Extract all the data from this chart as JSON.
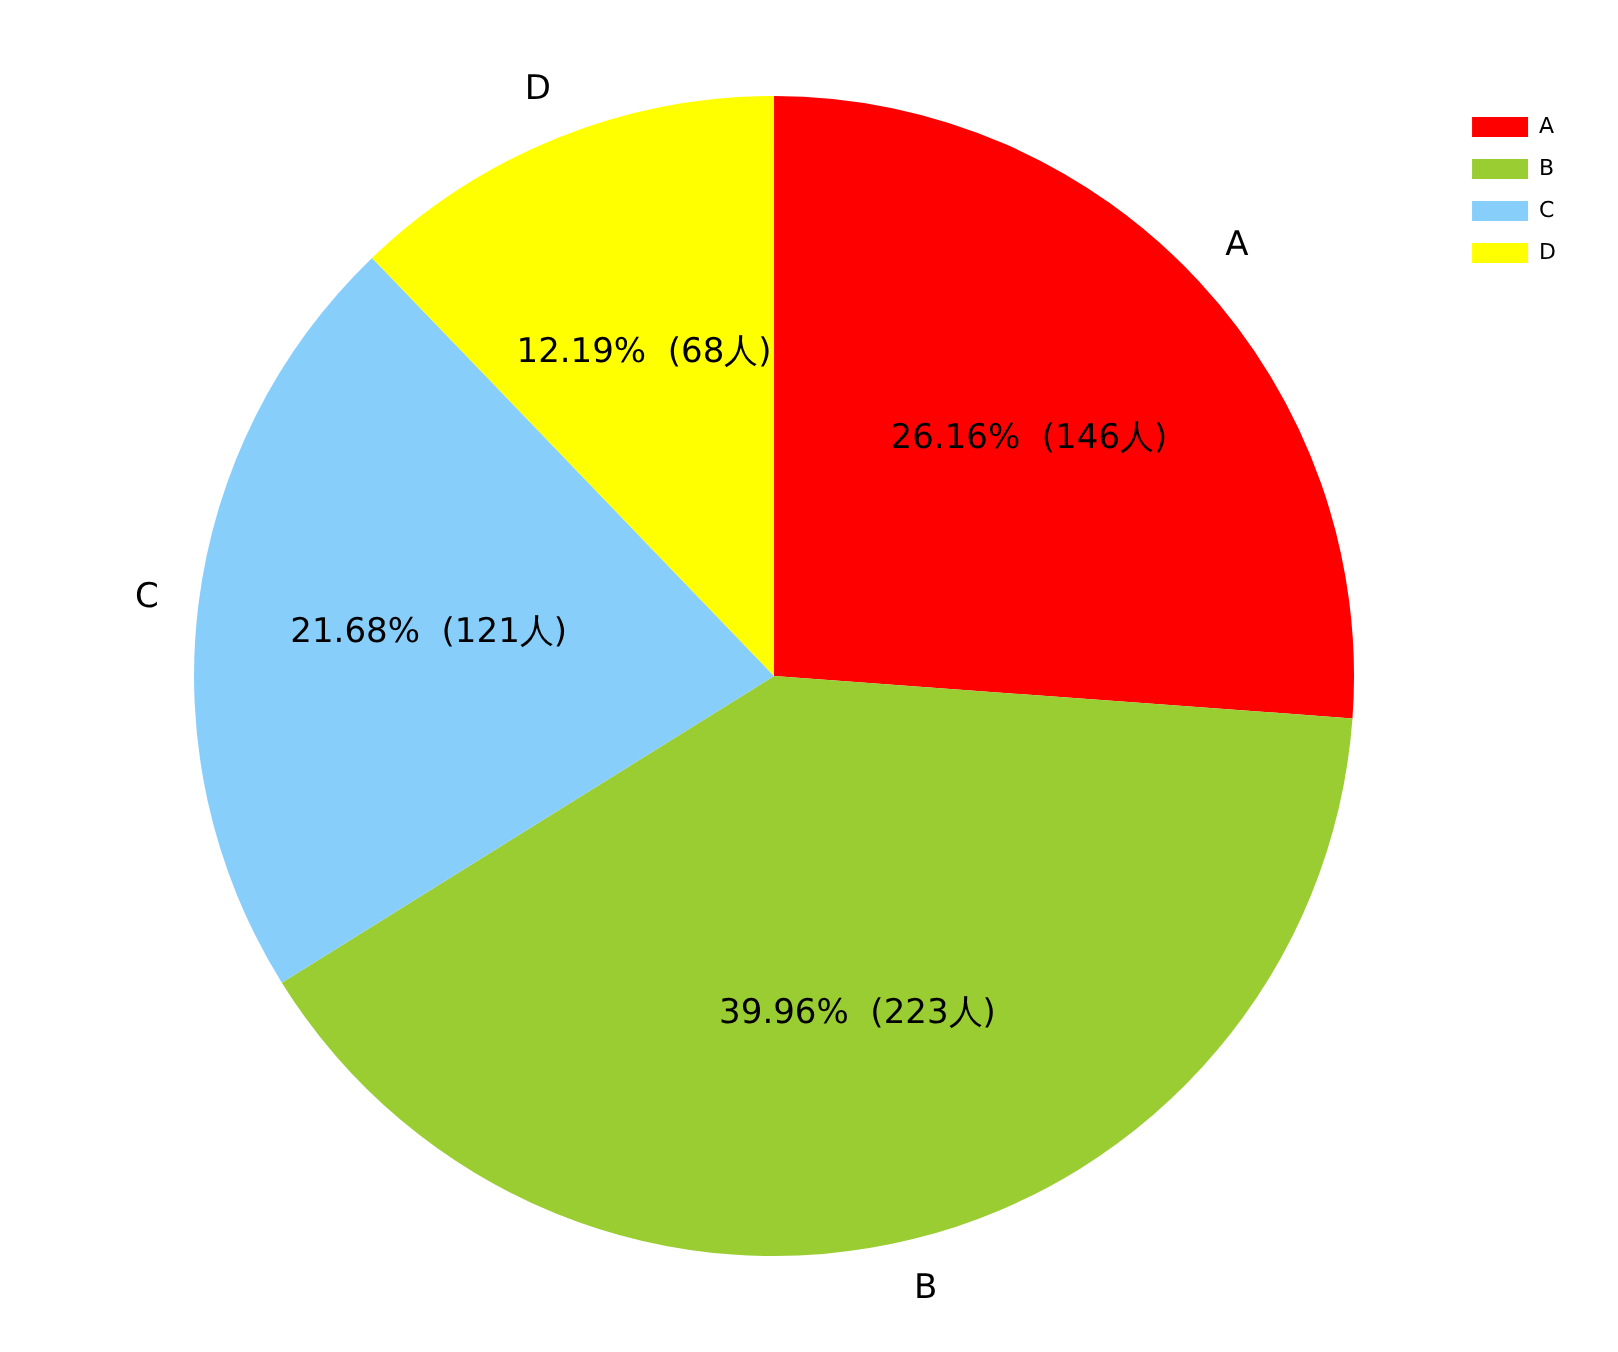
{
  "chart_data": {
    "type": "pie",
    "categories": [
      "A",
      "B",
      "C",
      "D"
    ],
    "values": [
      146,
      223,
      121,
      68
    ],
    "colors": [
      "#ff0000",
      "#9acd32",
      "#87cefa",
      "#ffff00"
    ],
    "value_labels": [
      "26.16%  (146人)",
      "39.96%  (223人)",
      "21.68%  (121人)",
      "12.19%  (68人)"
    ],
    "legend": "top right"
  }
}
